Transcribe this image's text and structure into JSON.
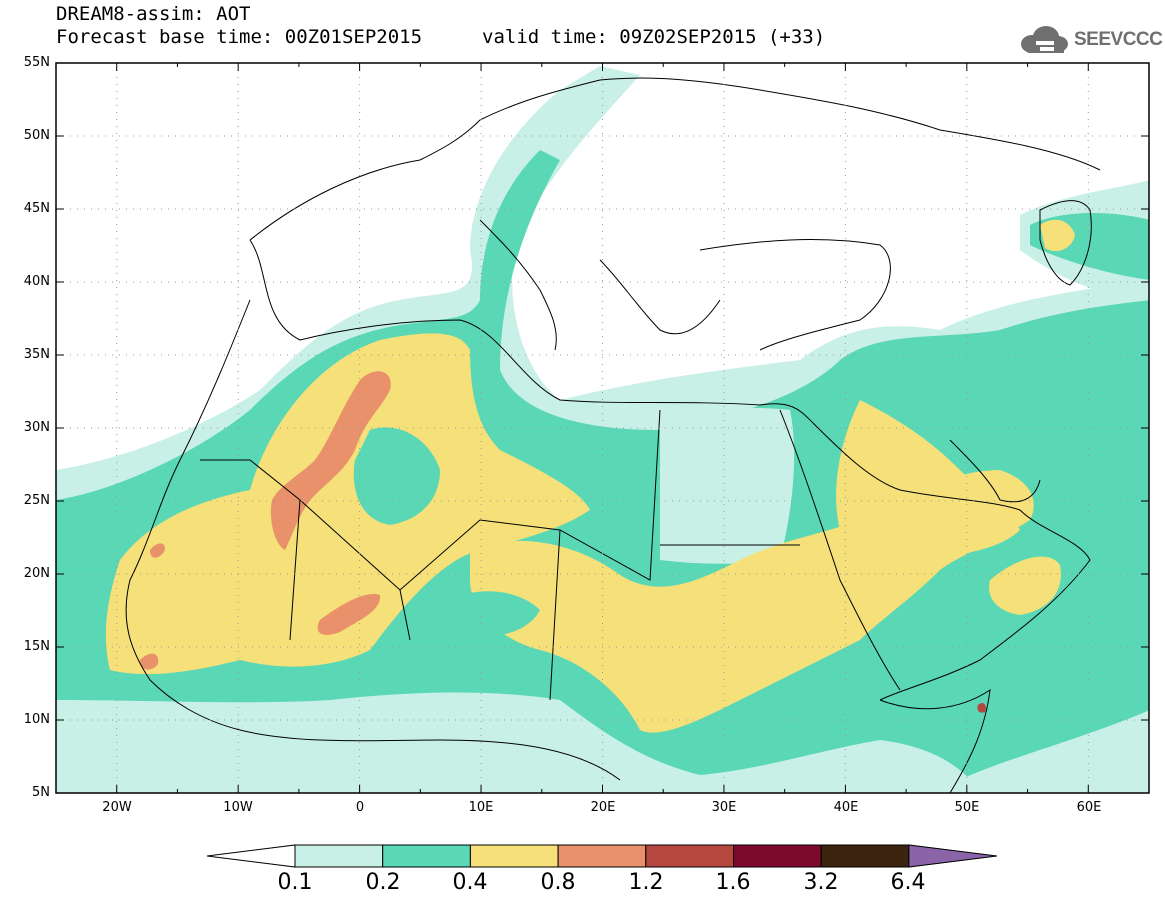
{
  "header": {
    "model_line": "DREAM8-assim: AOT",
    "base_line": "Forecast base time: 00Z01SEP2015",
    "valid_line": "valid time: 09Z02SEP2015 (+33)",
    "brand": "SEEVCCC"
  },
  "axes": {
    "lat_labels": [
      "55N",
      "50N",
      "45N",
      "40N",
      "35N",
      "30N",
      "25N",
      "20N",
      "15N",
      "10N",
      "5N"
    ],
    "lon_labels": [
      "20W",
      "10W",
      "0",
      "10E",
      "20E",
      "30E",
      "40E",
      "50E",
      "60E"
    ]
  },
  "colorbar": {
    "levels": [
      "0.1",
      "0.2",
      "0.4",
      "0.8",
      "1.2",
      "1.6",
      "3.2",
      "6.4"
    ],
    "colors": [
      "#c8f0e6",
      "#5ad7b5",
      "#f5e07a",
      "#e8916a",
      "#b5473f",
      "#7d0a2c",
      "#3d2410",
      "#8a63a8"
    ],
    "under_color": "#ffffff",
    "over_color": "#8a63a8"
  },
  "map_data": {
    "variable": "AOT",
    "lon_range": [
      -25,
      65
    ],
    "lat_range": [
      5,
      55
    ],
    "grid": true
  }
}
